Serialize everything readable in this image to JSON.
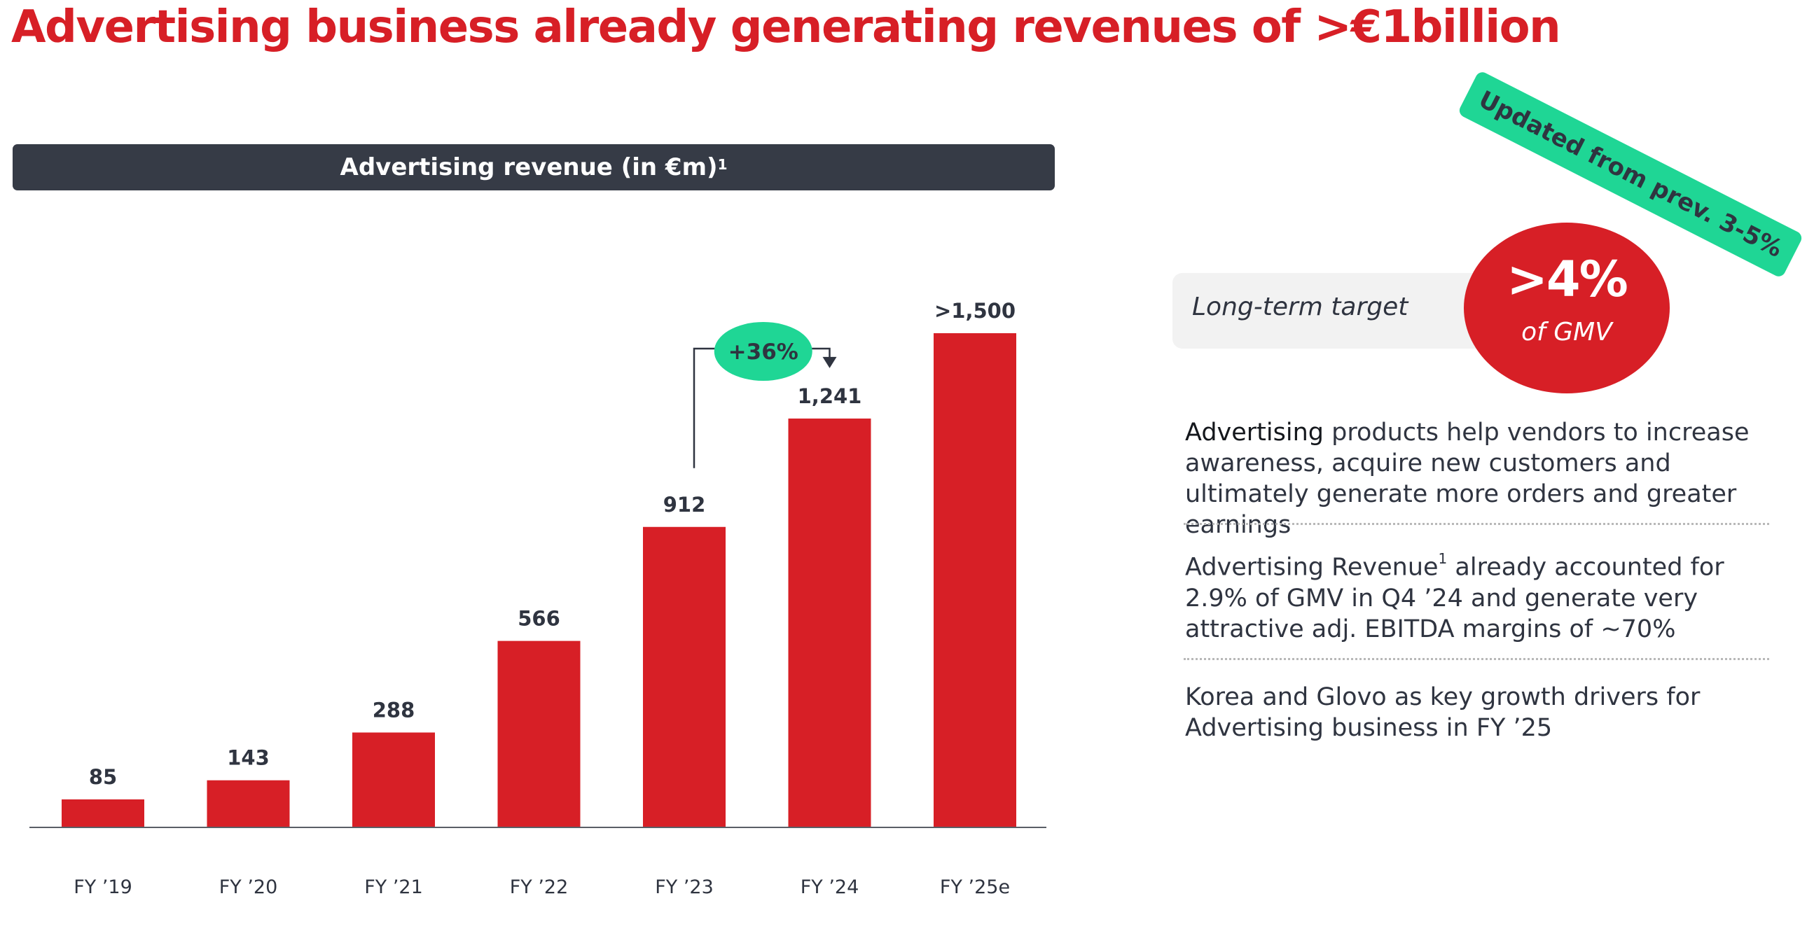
{
  "title": "Advertising business already generating revenues of >€1billion",
  "chart_header": {
    "label": "Advertising revenue (in €m)",
    "footnote": "1"
  },
  "chart_data": {
    "type": "bar",
    "title": "Advertising revenue (in €m)",
    "categories": [
      "FY ’19",
      "FY ’20",
      "FY ’21",
      "FY ’22",
      "FY ’23",
      "FY ’24",
      "FY ’25e"
    ],
    "values": [
      85,
      143,
      288,
      566,
      912,
      1241,
      1500
    ],
    "labels": [
      "85",
      "143",
      "288",
      "566",
      "912",
      "1,241",
      ">1,500"
    ],
    "ylim": [
      0,
      1500
    ],
    "xlabel": "",
    "ylabel": "",
    "grid": false,
    "bar_color": "#d71f26",
    "annotation": {
      "from": "FY ’23",
      "to": "FY ’24",
      "label": "+36%",
      "color": "#1fd695"
    }
  },
  "update_badge": "Updated from prev. 3-5%",
  "target": {
    "label": "Long-term target",
    "value": ">4%",
    "unit": "of GMV"
  },
  "bullets": {
    "b1": {
      "strong": "Advertising",
      "rest": " products help vendors to increase awareness, acquire new customers and ultimately generate more orders and greater earnings"
    },
    "b2": {
      "pre": "Advertising Revenue",
      "sup": "1",
      "post": " already accounted for 2.9% of GMV in Q4 ’24 and generate very attractive adj. EBITDA margins of ~70%"
    },
    "b3": {
      "text": "Korea and Glovo as key growth drivers for Advertising business in FY ’25"
    }
  },
  "colors": {
    "brand_red": "#d71f26",
    "dark": "#363b46",
    "green": "#1fd695"
  }
}
